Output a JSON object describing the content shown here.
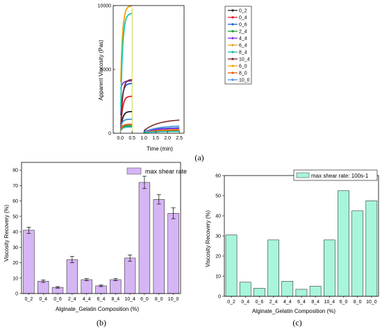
{
  "chart_data": [
    {
      "id": "a",
      "type": "line",
      "panel_label": "(a)",
      "xlabel": "Time (min)",
      "ylabel": "Apparent Viscosity (Pas)",
      "xlim": [
        -0.3,
        2.7
      ],
      "ylim": [
        0,
        10000
      ],
      "xticks": [
        "0.0",
        "0.5",
        "1.0",
        "1.5",
        "2.0",
        "2.5"
      ],
      "xtick_values": [
        0,
        0.5,
        1.0,
        1.5,
        2.0,
        2.5
      ],
      "yticks": [
        "0",
        "5000",
        "10000"
      ],
      "ytick_values": [
        0,
        5000,
        10000
      ],
      "grid": false,
      "legend_position": "right",
      "series": [
        {
          "name": "0_2",
          "color": "#222222",
          "p1": [
            200,
            1700
          ],
          "p2": [
            100,
            200
          ]
        },
        {
          "name": "0_4",
          "color": "#e0202a",
          "p1": [
            400,
            2900
          ],
          "p2": [
            100,
            250
          ]
        },
        {
          "name": "0_6",
          "color": "#2060d0",
          "p1": [
            1400,
            3900
          ],
          "p2": [
            150,
            450
          ]
        },
        {
          "name": "2_4",
          "color": "#1a9a3a",
          "p1": [
            200,
            600
          ],
          "p2": [
            50,
            300
          ]
        },
        {
          "name": "4_4",
          "color": "#8a2be2",
          "p1": [
            3500,
            4100
          ],
          "p2": [
            100,
            400
          ]
        },
        {
          "name": "6_4",
          "color": "#e8a020",
          "p1": [
            200,
            500
          ],
          "p2": [
            50,
            250
          ]
        },
        {
          "name": "8_4",
          "color": "#20b2aa",
          "p1": [
            200,
            500
          ],
          "p2": [
            50,
            200
          ]
        },
        {
          "name": "10_4",
          "color": "#7a2a2a",
          "p1": [
            500,
            4200
          ],
          "p2": [
            200,
            1100
          ]
        },
        {
          "name": "6_0",
          "color": "#f2a000",
          "p1": [
            4000,
            10000
          ],
          "p2": [
            50,
            300
          ]
        },
        {
          "name": "8_0",
          "color": "#e06010",
          "p1": [
            300,
            700
          ],
          "p2": [
            50,
            250
          ]
        },
        {
          "name": "10_0",
          "color": "#4a90e2",
          "p1": [
            500,
            1100
          ],
          "p2": [
            100,
            600
          ]
        },
        {
          "name": "",
          "color": "#16c9b0",
          "p1": [
            2000,
            9400
          ],
          "p2": [
            50,
            150
          ]
        }
      ]
    },
    {
      "id": "b",
      "type": "bar",
      "panel_label": "(b)",
      "legend": "max shear rate",
      "legend_position": "top-right",
      "xlabel": "Alginate_Gelatin Composition (%)",
      "ylabel": "Viscosity Recovery (%)",
      "ylim": [
        0,
        85
      ],
      "yticks": [
        "0",
        "10",
        "20",
        "30",
        "40",
        "50",
        "60",
        "70",
        "80"
      ],
      "ytick_values": [
        0,
        10,
        20,
        30,
        40,
        50,
        60,
        70,
        80
      ],
      "categories": [
        "0_2",
        "0_4",
        "0_6",
        "2_4",
        "4_4",
        "6_4",
        "8_4",
        "10_4",
        "6_0",
        "8_0",
        "10_0"
      ],
      "values": [
        41,
        8,
        4,
        22,
        9,
        5,
        9,
        23,
        72,
        61,
        52
      ],
      "errors": [
        2,
        0.8,
        0.5,
        2,
        0.6,
        0.5,
        0.6,
        2,
        4,
        3,
        3.5
      ],
      "bar_color": "#d6b5f5",
      "grid": false
    },
    {
      "id": "c",
      "type": "bar",
      "panel_label": "(c)",
      "legend": "max shear rate: 100s-1",
      "legend_position": "top-right",
      "xlabel": "Alginate_Gelatin Composition (%)",
      "ylabel": "Viscosity Recovery (%)",
      "ylim": [
        0,
        60
      ],
      "yticks": [
        "0",
        "10",
        "20",
        "30",
        "40",
        "50",
        "60"
      ],
      "ytick_values": [
        0,
        10,
        20,
        30,
        40,
        50,
        60
      ],
      "categories": [
        "0_2",
        "0_4",
        "0_6",
        "2_4",
        "4_4",
        "6_4",
        "8_4",
        "10_4",
        "6_0",
        "8_0",
        "10_0"
      ],
      "values": [
        30.5,
        7,
        4,
        28,
        7.5,
        3.5,
        5,
        28,
        52.5,
        42.5,
        47.5
      ],
      "bar_color": "#a8f5dc",
      "grid": false
    }
  ]
}
